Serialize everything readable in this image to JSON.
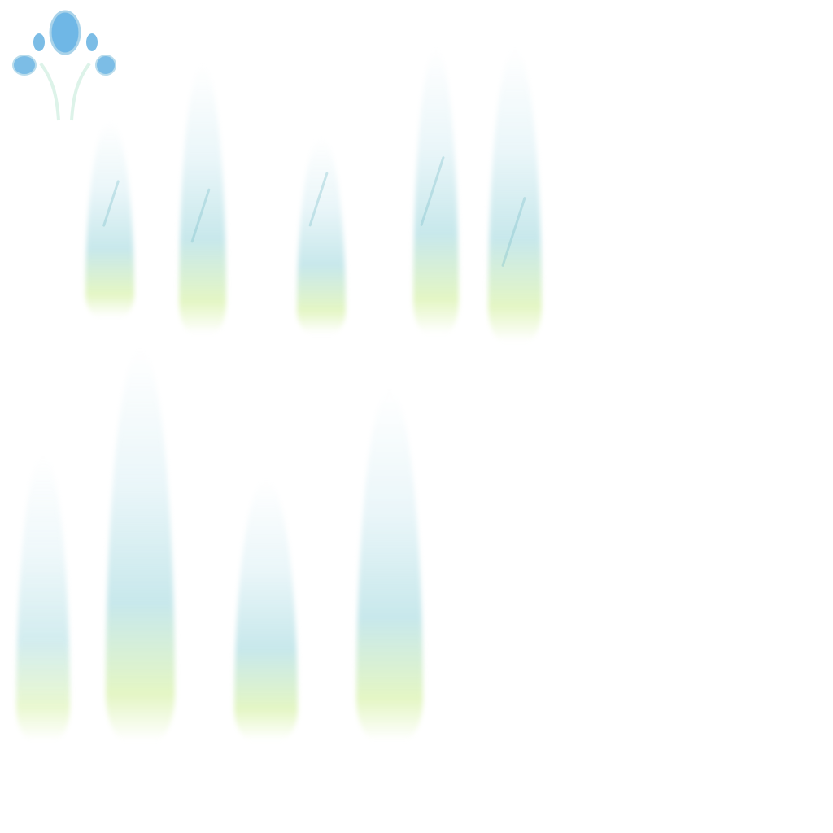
{
  "sheet": {
    "colors": {
      "crystal_blue": "#6fb7e6",
      "ice_cyan": "#bfe4e8",
      "glow_yellow": "#eef8c8",
      "background": "#ffffff"
    },
    "icon": "crystal-crown-icon"
  }
}
